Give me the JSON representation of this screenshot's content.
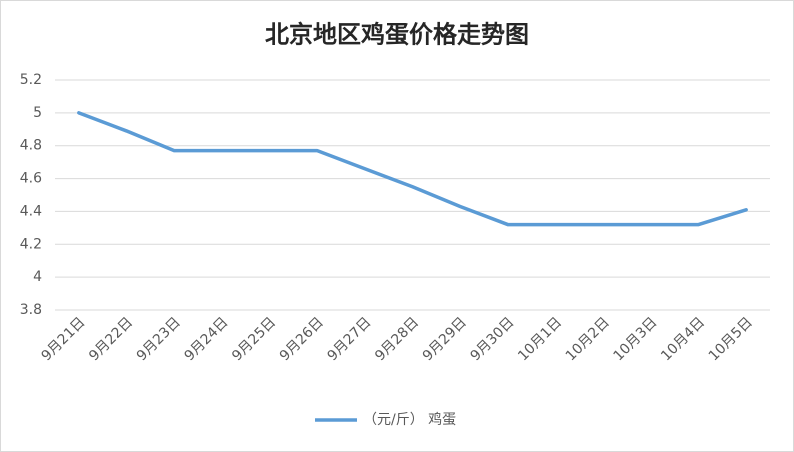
{
  "chart_data": {
    "type": "line",
    "title": "北京地区鸡蛋价格走势图",
    "categories": [
      "9月21日",
      "9月22日",
      "9月23日",
      "9月24日",
      "9月25日",
      "9月26日",
      "9月27日",
      "9月28日",
      "9月29日",
      "9月30日",
      "10月1日",
      "10月2日",
      "10月3日",
      "10月4日",
      "10月5日"
    ],
    "series": [
      {
        "name": "（元/斤） 鸡蛋",
        "color": "#5b9bd5",
        "values": [
          5.0,
          4.89,
          4.77,
          4.77,
          4.77,
          4.77,
          4.66,
          4.55,
          4.43,
          4.32,
          4.32,
          4.32,
          4.32,
          4.32,
          4.41
        ]
      }
    ],
    "ylim": [
      3.8,
      5.2
    ],
    "yticks": [
      3.8,
      4,
      4.2,
      4.4,
      4.6,
      4.8,
      5,
      5.2
    ],
    "grid": true,
    "legend": "bottom"
  }
}
